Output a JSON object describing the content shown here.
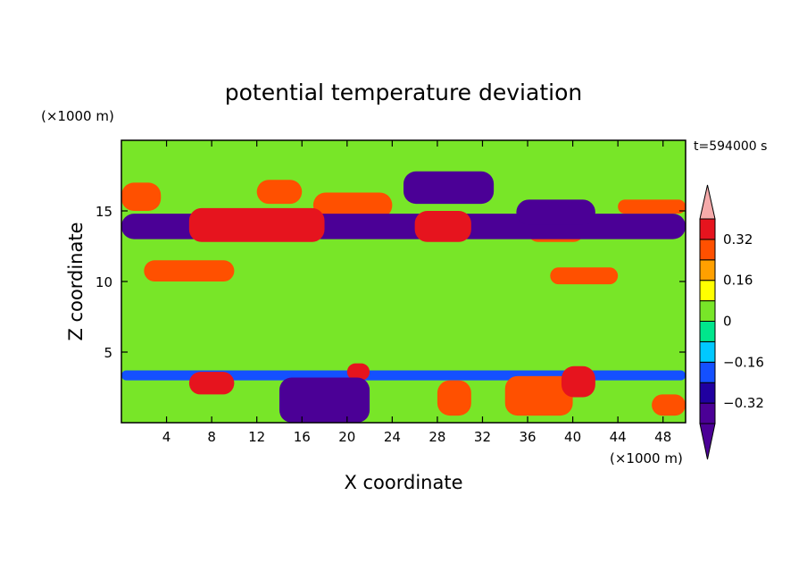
{
  "chart_data": {
    "type": "heatmap",
    "title": "potential temperature deviation",
    "xlabel": "X coordinate",
    "ylabel": "Z coordinate",
    "x_unit": "(×1000 m)",
    "y_unit": "(×1000 m)",
    "time_label": "t=594000 s",
    "xlim": [
      0,
      50
    ],
    "ylim": [
      0,
      20
    ],
    "x_ticks": [
      4,
      8,
      12,
      16,
      20,
      24,
      28,
      32,
      36,
      40,
      44,
      48
    ],
    "y_ticks": [
      5,
      10,
      15
    ],
    "colorbar": {
      "labels": [
        "0.32",
        "0.16",
        "0",
        "−0.16",
        "−0.32"
      ],
      "label_values": [
        0.32,
        0.16,
        0,
        -0.16,
        -0.32
      ],
      "levels": [
        -0.4,
        -0.32,
        -0.24,
        -0.16,
        -0.08,
        0,
        0.08,
        0.16,
        0.24,
        0.32,
        0.4
      ],
      "colors": [
        "#4b0096",
        "#2000a0",
        "#1450ff",
        "#00c8ff",
        "#00e68c",
        "#78e628",
        "#ffff00",
        "#ffa000",
        "#ff5000",
        "#e6141e",
        "#f5aaaa"
      ],
      "extend": "both"
    },
    "features": [
      {
        "x0": 0,
        "x1": 50,
        "z0": 13.0,
        "z1": 14.8,
        "v": -0.36
      },
      {
        "x0": 0,
        "x1": 3.5,
        "z0": 15.0,
        "z1": 17.0,
        "v": 0.3
      },
      {
        "x0": 6,
        "x1": 18,
        "z0": 12.8,
        "z1": 15.2,
        "v": 0.36
      },
      {
        "x0": 12,
        "x1": 16,
        "z0": 15.5,
        "z1": 17.2,
        "v": 0.3
      },
      {
        "x0": 17,
        "x1": 24,
        "z0": 14.5,
        "z1": 16.3,
        "v": 0.26
      },
      {
        "x0": 26,
        "x1": 31,
        "z0": 12.8,
        "z1": 15.0,
        "v": 0.36
      },
      {
        "x0": 25,
        "x1": 33,
        "z0": 15.5,
        "z1": 17.8,
        "v": -0.38
      },
      {
        "x0": 35,
        "x1": 42,
        "z0": 14.0,
        "z1": 15.8,
        "v": -0.38
      },
      {
        "x0": 36,
        "x1": 41,
        "z0": 12.8,
        "z1": 14.3,
        "v": 0.3
      },
      {
        "x0": 44,
        "x1": 50,
        "z0": 14.8,
        "z1": 15.8,
        "v": 0.3
      },
      {
        "x0": 2,
        "x1": 10,
        "z0": 10.0,
        "z1": 11.5,
        "v": 0.3
      },
      {
        "x0": 38,
        "x1": 44,
        "z0": 9.8,
        "z1": 11.0,
        "v": 0.28
      },
      {
        "x0": 0,
        "x1": 50,
        "z0": 3.0,
        "z1": 3.7,
        "v": -0.22
      },
      {
        "x0": 14,
        "x1": 22,
        "z0": 0.0,
        "z1": 3.2,
        "v": -0.36
      },
      {
        "x0": 34,
        "x1": 40,
        "z0": 0.5,
        "z1": 3.3,
        "v": 0.3
      },
      {
        "x0": 39,
        "x1": 42,
        "z0": 1.8,
        "z1": 4.0,
        "v": 0.36
      },
      {
        "x0": 6,
        "x1": 10,
        "z0": 2.0,
        "z1": 3.6,
        "v": 0.34
      },
      {
        "x0": 20,
        "x1": 22,
        "z0": 3.0,
        "z1": 4.2,
        "v": 0.34
      },
      {
        "x0": 28,
        "x1": 31,
        "z0": 0.5,
        "z1": 3.0,
        "v": 0.24
      },
      {
        "x0": 47,
        "x1": 50,
        "z0": 0.5,
        "z1": 2.0,
        "v": 0.3
      },
      {
        "x0": 0,
        "x1": 50,
        "z0": 4.0,
        "z1": 9.5,
        "v": 0.02
      }
    ]
  }
}
